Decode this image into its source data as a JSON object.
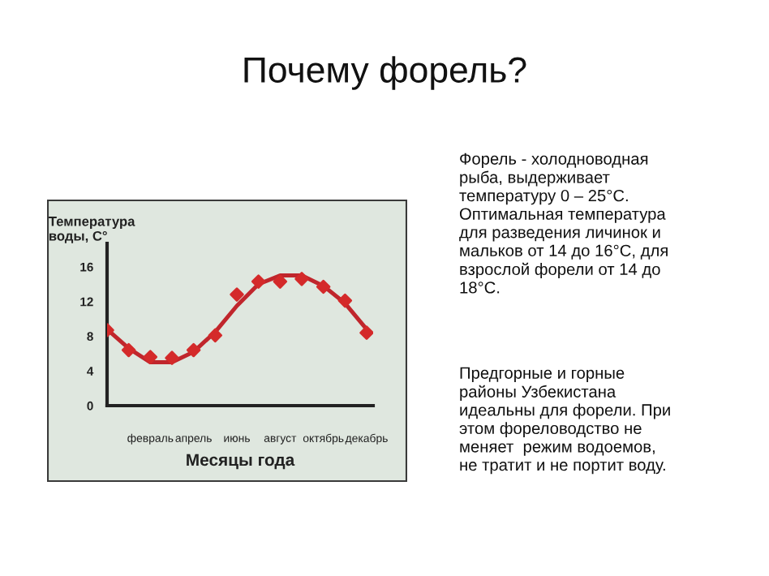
{
  "chart_data": {
    "type": "line",
    "title": "Почему форель?",
    "ylabel": "Температура\nводы, С°",
    "xlabel": "Месяцы года",
    "categories": [
      null,
      null,
      "февраль",
      null,
      "апрель",
      null,
      "июнь",
      null,
      "август",
      null,
      "октябрь",
      null,
      "декабрь"
    ],
    "series": [
      {
        "color": "#c0262c",
        "values": [
          8.8,
          6.6,
          5.0,
          5.0,
          6.2,
          8.5,
          11.5,
          14.0,
          15.0,
          15.0,
          13.8,
          11.8,
          8.8
        ]
      },
      {
        "type": "scatter",
        "color": "#d42a2a",
        "values": [
          8.7,
          6.4,
          5.6,
          5.5,
          6.4,
          8.1,
          12.8,
          14.3,
          14.3,
          14.6,
          13.7,
          12.1,
          8.4
        ],
        "marker": "diamond"
      }
    ],
    "ylim": [
      0,
      18.7
    ],
    "yticks": [
      0,
      4,
      8,
      12,
      16
    ],
    "annotations": [
      "Форель - холодноводная\nрыба, выдерживает\nтемпературу 0 – 25°С.\nОптимальная температура\nдля разведения личинок и\nмальков от 14 до 16°С, для\nвзрослой форели от 14 до\n18°С.",
      "Предгорные и горные\nрайоны Узбекистана\nидеальны для форели. При\nэтом фореловодство не\nменяет  режим водоемов,\nне тратит и не портит воду."
    ]
  }
}
